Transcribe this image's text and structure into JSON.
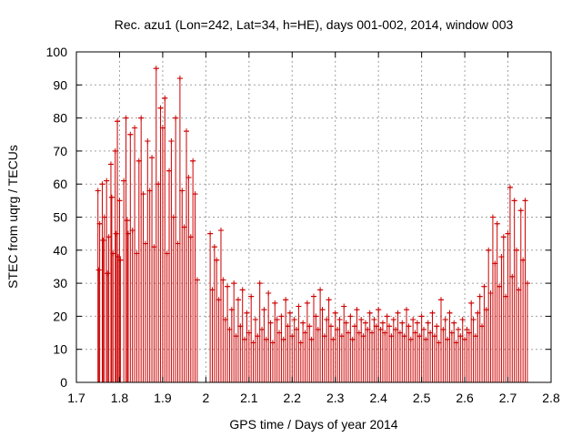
{
  "chart_data": {
    "type": "scatter",
    "title": "Rec. azu1 (Lon=242, Lat=34, h=HE), days 001-002, 2014, window 003",
    "xlabel": "GPS time / Days of year 2014",
    "ylabel": "STEC from uqrg / TECUs",
    "xlim": [
      1.7,
      2.8
    ],
    "ylim": [
      0,
      100
    ],
    "xticks": [
      "1.7",
      "1.8",
      "1.9",
      "2",
      "2.1",
      "2.2",
      "2.3",
      "2.4",
      "2.5",
      "2.6",
      "2.7",
      "2.8"
    ],
    "yticks": [
      "0",
      "10",
      "20",
      "30",
      "40",
      "50",
      "60",
      "70",
      "80",
      "90",
      "100"
    ],
    "grid": true,
    "errorbar_lower": 0,
    "series_color": "#cc0000",
    "points": [
      [
        1.75,
        58
      ],
      [
        1.752,
        34
      ],
      [
        1.754,
        48
      ],
      [
        1.76,
        60
      ],
      [
        1.762,
        43
      ],
      [
        1.765,
        50
      ],
      [
        1.77,
        61
      ],
      [
        1.772,
        33
      ],
      [
        1.775,
        44
      ],
      [
        1.78,
        66
      ],
      [
        1.782,
        56
      ],
      [
        1.785,
        39
      ],
      [
        1.79,
        70
      ],
      [
        1.792,
        45
      ],
      [
        1.795,
        79
      ],
      [
        1.797,
        38
      ],
      [
        1.8,
        55
      ],
      [
        1.802,
        37
      ],
      [
        1.81,
        61
      ],
      [
        1.815,
        80
      ],
      [
        1.818,
        49
      ],
      [
        1.82,
        45
      ],
      [
        1.825,
        75
      ],
      [
        1.83,
        46
      ],
      [
        1.835,
        77
      ],
      [
        1.84,
        39
      ],
      [
        1.845,
        67
      ],
      [
        1.85,
        80
      ],
      [
        1.855,
        57
      ],
      [
        1.86,
        42
      ],
      [
        1.865,
        73
      ],
      [
        1.87,
        58
      ],
      [
        1.875,
        68
      ],
      [
        1.88,
        41
      ],
      [
        1.885,
        95
      ],
      [
        1.89,
        60
      ],
      [
        1.895,
        83
      ],
      [
        1.9,
        77
      ],
      [
        1.905,
        86
      ],
      [
        1.91,
        39
      ],
      [
        1.915,
        64
      ],
      [
        1.92,
        73
      ],
      [
        1.925,
        50
      ],
      [
        1.93,
        80
      ],
      [
        1.935,
        42
      ],
      [
        1.94,
        92
      ],
      [
        1.945,
        58
      ],
      [
        1.95,
        47
      ],
      [
        1.955,
        76
      ],
      [
        1.96,
        62
      ],
      [
        1.965,
        44
      ],
      [
        1.97,
        67
      ],
      [
        1.975,
        57
      ],
      [
        1.98,
        31
      ],
      [
        2.01,
        45
      ],
      [
        2.015,
        28
      ],
      [
        2.02,
        41
      ],
      [
        2.025,
        37
      ],
      [
        2.03,
        25
      ],
      [
        2.035,
        46
      ],
      [
        2.04,
        31
      ],
      [
        2.045,
        19
      ],
      [
        2.05,
        29
      ],
      [
        2.055,
        16
      ],
      [
        2.06,
        22
      ],
      [
        2.065,
        30
      ],
      [
        2.07,
        14
      ],
      [
        2.075,
        25
      ],
      [
        2.08,
        17
      ],
      [
        2.085,
        28
      ],
      [
        2.09,
        13
      ],
      [
        2.095,
        21
      ],
      [
        2.1,
        15
      ],
      [
        2.105,
        26
      ],
      [
        2.11,
        12
      ],
      [
        2.115,
        19
      ],
      [
        2.12,
        14
      ],
      [
        2.125,
        30
      ],
      [
        2.13,
        16
      ],
      [
        2.135,
        22
      ],
      [
        2.14,
        13
      ],
      [
        2.145,
        27
      ],
      [
        2.15,
        18
      ],
      [
        2.155,
        12
      ],
      [
        2.16,
        24
      ],
      [
        2.165,
        19
      ],
      [
        2.17,
        15
      ],
      [
        2.175,
        20
      ],
      [
        2.18,
        13
      ],
      [
        2.185,
        25
      ],
      [
        2.19,
        17
      ],
      [
        2.195,
        21
      ],
      [
        2.2,
        14
      ],
      [
        2.205,
        19
      ],
      [
        2.21,
        16
      ],
      [
        2.215,
        23
      ],
      [
        2.22,
        12
      ],
      [
        2.225,
        18
      ],
      [
        2.23,
        15
      ],
      [
        2.235,
        24
      ],
      [
        2.24,
        17
      ],
      [
        2.245,
        13
      ],
      [
        2.25,
        26
      ],
      [
        2.255,
        20
      ],
      [
        2.26,
        16
      ],
      [
        2.265,
        28
      ],
      [
        2.27,
        22
      ],
      [
        2.275,
        14
      ],
      [
        2.28,
        19
      ],
      [
        2.285,
        25
      ],
      [
        2.29,
        17
      ],
      [
        2.295,
        13
      ],
      [
        2.3,
        21
      ],
      [
        2.305,
        16
      ],
      [
        2.31,
        19
      ],
      [
        2.315,
        14
      ],
      [
        2.32,
        23
      ],
      [
        2.325,
        18
      ],
      [
        2.33,
        15
      ],
      [
        2.335,
        20
      ],
      [
        2.34,
        13
      ],
      [
        2.345,
        17
      ],
      [
        2.35,
        22
      ],
      [
        2.355,
        15
      ],
      [
        2.36,
        19
      ],
      [
        2.365,
        14
      ],
      [
        2.37,
        18
      ],
      [
        2.375,
        16
      ],
      [
        2.38,
        21
      ],
      [
        2.385,
        15
      ],
      [
        2.39,
        19
      ],
      [
        2.395,
        17
      ],
      [
        2.4,
        22
      ],
      [
        2.405,
        16
      ],
      [
        2.41,
        18
      ],
      [
        2.415,
        15
      ],
      [
        2.42,
        20
      ],
      [
        2.425,
        17
      ],
      [
        2.43,
        14
      ],
      [
        2.435,
        19
      ],
      [
        2.44,
        16
      ],
      [
        2.445,
        21
      ],
      [
        2.45,
        15
      ],
      [
        2.455,
        18
      ],
      [
        2.46,
        14
      ],
      [
        2.465,
        22
      ],
      [
        2.47,
        17
      ],
      [
        2.475,
        13
      ],
      [
        2.48,
        19
      ],
      [
        2.485,
        15
      ],
      [
        2.49,
        18
      ],
      [
        2.495,
        14
      ],
      [
        2.5,
        20
      ],
      [
        2.505,
        16
      ],
      [
        2.51,
        13
      ],
      [
        2.515,
        18
      ],
      [
        2.52,
        15
      ],
      [
        2.525,
        21
      ],
      [
        2.53,
        14
      ],
      [
        2.535,
        17
      ],
      [
        2.54,
        12
      ],
      [
        2.545,
        25
      ],
      [
        2.55,
        16
      ],
      [
        2.555,
        19
      ],
      [
        2.56,
        13
      ],
      [
        2.565,
        21
      ],
      [
        2.57,
        15
      ],
      [
        2.575,
        18
      ],
      [
        2.58,
        12
      ],
      [
        2.585,
        16
      ],
      [
        2.59,
        14
      ],
      [
        2.595,
        19
      ],
      [
        2.6,
        13
      ],
      [
        2.605,
        16
      ],
      [
        2.61,
        15
      ],
      [
        2.615,
        24
      ],
      [
        2.62,
        19
      ],
      [
        2.625,
        14
      ],
      [
        2.63,
        21
      ],
      [
        2.635,
        26
      ],
      [
        2.64,
        17
      ],
      [
        2.645,
        29
      ],
      [
        2.65,
        22
      ],
      [
        2.655,
        40
      ],
      [
        2.66,
        27
      ],
      [
        2.665,
        50
      ],
      [
        2.67,
        36
      ],
      [
        2.675,
        48
      ],
      [
        2.68,
        29
      ],
      [
        2.685,
        38
      ],
      [
        2.69,
        44
      ],
      [
        2.695,
        26
      ],
      [
        2.7,
        45
      ],
      [
        2.705,
        59
      ],
      [
        2.71,
        32
      ],
      [
        2.715,
        55
      ],
      [
        2.72,
        40
      ],
      [
        2.725,
        28
      ],
      [
        2.73,
        52
      ],
      [
        2.735,
        37
      ],
      [
        2.74,
        55
      ],
      [
        2.745,
        30
      ]
    ]
  }
}
